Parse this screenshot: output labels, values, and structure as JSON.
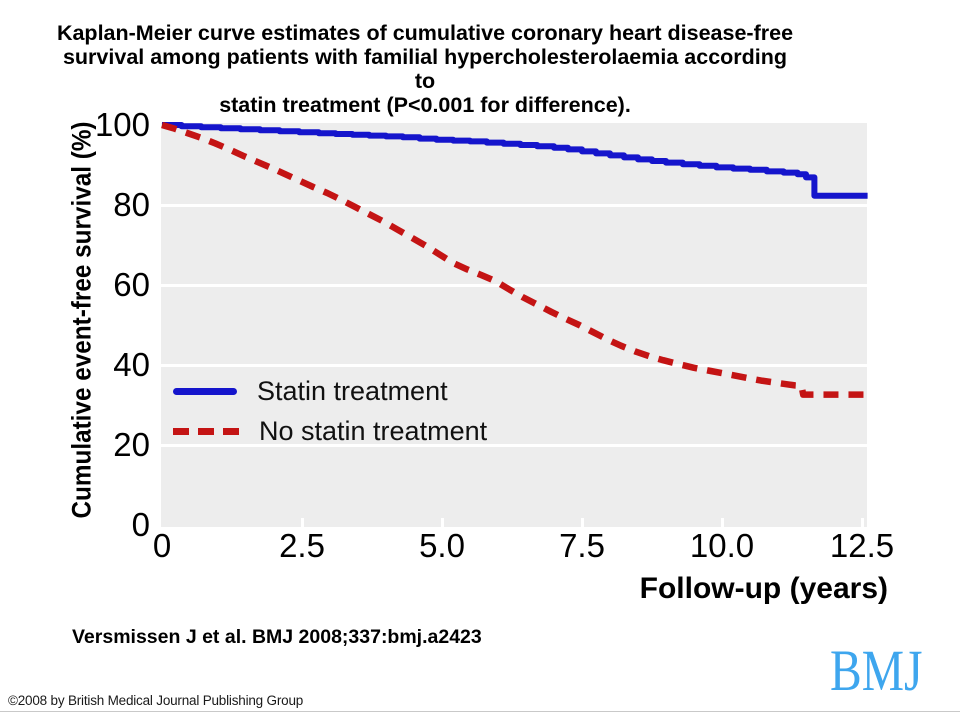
{
  "title": {
    "lines": [
      "Kaplan-Meier curve estimates of cumulative coronary heart disease-free",
      "survival among patients with familial hypercholesterolaemia according to",
      "statin treatment (P<0.001 for difference)."
    ]
  },
  "chart_data": {
    "type": "line",
    "subtype": "kaplan-meier-survival",
    "title": "Kaplan-Meier curve estimates of cumulative coronary heart disease-free survival among patients with familial hypercholesterolaemia according to statin treatment (P<0.001 for difference).",
    "xlabel": "Follow-up (years)",
    "ylabel": "Cumulative event-free survival (%)",
    "xlim": [
      0,
      12.6
    ],
    "ylim": [
      0,
      100
    ],
    "x_ticks": [
      0,
      2.5,
      5.0,
      7.5,
      10.0,
      12.5
    ],
    "x_tick_labels": [
      "0",
      "2.5",
      "5.0",
      "7.5",
      "10.0",
      "12.5"
    ],
    "y_ticks": [
      100,
      80,
      60,
      40,
      20,
      0
    ],
    "y_tick_labels": [
      "100",
      "80",
      "60",
      "40",
      "20",
      "0"
    ],
    "y_gridlines": [
      80,
      60,
      40,
      20
    ],
    "grid": true,
    "panel_bg": "#ededed",
    "gridline_color": "#ffffff",
    "legend_position": "inside-middle-left",
    "annotation": "P<0.001 for difference",
    "series": [
      {
        "name": "Statin treatment",
        "color": "#1515cc",
        "line_style": "solid",
        "draw": "step",
        "stroke_width": 6,
        "points": [
          [
            0,
            100
          ],
          [
            0.35,
            99.7
          ],
          [
            0.7,
            99.45
          ],
          [
            1.05,
            99.2
          ],
          [
            1.4,
            98.95
          ],
          [
            1.75,
            98.7
          ],
          [
            2.1,
            98.45
          ],
          [
            2.45,
            98.2
          ],
          [
            2.8,
            97.95
          ],
          [
            3.1,
            97.75
          ],
          [
            3.4,
            97.55
          ],
          [
            3.7,
            97.35
          ],
          [
            4.0,
            97.15
          ],
          [
            4.3,
            96.95
          ],
          [
            4.6,
            96.6
          ],
          [
            4.9,
            96.3
          ],
          [
            5.2,
            96.1
          ],
          [
            5.5,
            95.9
          ],
          [
            5.8,
            95.6
          ],
          [
            6.1,
            95.3
          ],
          [
            6.4,
            95.0
          ],
          [
            6.7,
            94.7
          ],
          [
            7.0,
            94.3
          ],
          [
            7.25,
            93.9
          ],
          [
            7.5,
            93.4
          ],
          [
            7.75,
            92.9
          ],
          [
            8.0,
            92.4
          ],
          [
            8.25,
            91.9
          ],
          [
            8.5,
            91.4
          ],
          [
            8.75,
            91.0
          ],
          [
            9.0,
            90.6
          ],
          [
            9.3,
            90.2
          ],
          [
            9.6,
            89.8
          ],
          [
            9.9,
            89.4
          ],
          [
            10.2,
            89.1
          ],
          [
            10.5,
            88.8
          ],
          [
            10.8,
            88.4
          ],
          [
            11.1,
            88.1
          ],
          [
            11.35,
            87.7
          ],
          [
            11.5,
            86.9
          ],
          [
            11.65,
            82.3
          ],
          [
            12.6,
            82.3
          ]
        ]
      },
      {
        "name": "No statin treatment",
        "color": "#c41414",
        "line_style": "dashed",
        "draw": "linear",
        "stroke_width": 6.5,
        "dash": [
          15,
          10
        ],
        "points": [
          [
            0,
            100
          ],
          [
            0.2,
            99.2
          ],
          [
            0.45,
            98.0
          ],
          [
            0.7,
            96.8
          ],
          [
            0.95,
            95.4
          ],
          [
            1.2,
            93.9
          ],
          [
            1.45,
            92.3
          ],
          [
            1.7,
            90.8
          ],
          [
            1.95,
            89.3
          ],
          [
            2.2,
            87.7
          ],
          [
            2.45,
            86.1
          ],
          [
            2.7,
            84.5
          ],
          [
            2.95,
            83.0
          ],
          [
            3.2,
            81.3
          ],
          [
            3.45,
            79.5
          ],
          [
            3.7,
            77.7
          ],
          [
            3.95,
            75.9
          ],
          [
            4.2,
            73.9
          ],
          [
            4.45,
            71.9
          ],
          [
            4.7,
            69.9
          ],
          [
            4.95,
            67.7
          ],
          [
            5.2,
            65.5
          ],
          [
            5.45,
            63.9
          ],
          [
            5.7,
            62.5
          ],
          [
            5.95,
            61.0
          ],
          [
            6.2,
            58.9
          ],
          [
            6.45,
            56.9
          ],
          [
            6.7,
            55.1
          ],
          [
            6.95,
            53.3
          ],
          [
            7.2,
            51.6
          ],
          [
            7.45,
            50.0
          ],
          [
            7.7,
            48.2
          ],
          [
            7.95,
            46.4
          ],
          [
            8.2,
            44.8
          ],
          [
            8.45,
            43.4
          ],
          [
            8.7,
            42.2
          ],
          [
            8.95,
            41.2
          ],
          [
            9.2,
            40.3
          ],
          [
            9.5,
            39.3
          ],
          [
            9.8,
            38.5
          ],
          [
            10.1,
            37.7
          ],
          [
            10.4,
            36.9
          ],
          [
            10.7,
            36.1
          ],
          [
            11.0,
            35.5
          ],
          [
            11.3,
            34.9
          ],
          [
            11.42,
            34.8
          ],
          [
            11.45,
            32.6
          ],
          [
            12.6,
            32.6
          ]
        ]
      }
    ]
  },
  "caption": "Versmissen J et al. BMJ 2008;337:bmj.a2423",
  "copyright": "©2008 by British Medical Journal Publishing Group",
  "logo_text": "BMJ",
  "colors": {
    "statin_line": "#1515cc",
    "no_statin_line": "#c41414",
    "panel_bg": "#ededed",
    "gridline": "#ffffff",
    "logo_blue": "#3ea6ee",
    "text": "#000000"
  }
}
